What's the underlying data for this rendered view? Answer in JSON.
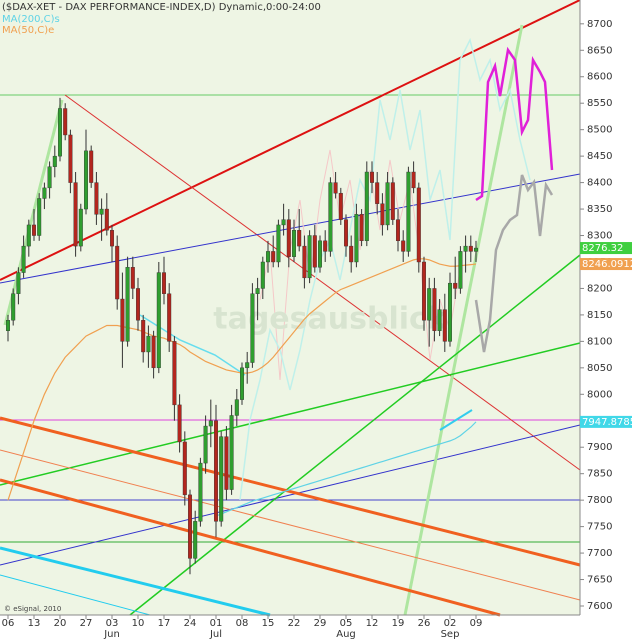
{
  "chart_data": {
    "type": "candlestick",
    "title": "($DAX-XET - DAX PERFORMANCE-INDEX,D) Dynamic,0:00-24:00",
    "watermark": "tagesausblick",
    "copyright": "© eSignal, 2010",
    "categories": [
      "06",
      null,
      null,
      null,
      null,
      "13",
      null,
      null,
      null,
      null,
      "20",
      null,
      null,
      null,
      null,
      "27",
      null,
      null,
      null,
      null,
      "03",
      null,
      null,
      null,
      null,
      "10",
      null,
      null,
      null,
      null,
      "17",
      null,
      null,
      null,
      null,
      "24",
      null,
      null,
      null,
      null,
      "01",
      null,
      null,
      null,
      null,
      "08",
      null,
      null,
      null,
      null,
      "15",
      null,
      null,
      null,
      null,
      "22",
      null,
      null,
      null,
      null,
      "29",
      null,
      null,
      null,
      null,
      "05",
      null,
      null,
      null,
      null,
      "12",
      null,
      null,
      null,
      null,
      "19",
      null,
      null,
      null,
      null,
      "26",
      null,
      null,
      null,
      null,
      "02",
      null,
      null,
      null,
      null,
      "09"
    ],
    "months": [
      {
        "label": "Jun",
        "category": "03"
      },
      {
        "label": "Jul",
        "category": "01"
      },
      {
        "label": "Aug",
        "category": "05"
      },
      {
        "label": "Sep",
        "category": "02"
      }
    ],
    "up_color": "#2f9e2f",
    "down_color": "#b3261e",
    "ohlc": [
      [
        8120,
        8150,
        8100,
        8140
      ],
      [
        8140,
        8200,
        8130,
        8190
      ],
      [
        8190,
        8240,
        8170,
        8230
      ],
      [
        8230,
        8300,
        8220,
        8280
      ],
      [
        8280,
        8330,
        8260,
        8320
      ],
      [
        8320,
        8350,
        8290,
        8300
      ],
      [
        8300,
        8380,
        8290,
        8370
      ],
      [
        8370,
        8400,
        8350,
        8390
      ],
      [
        8390,
        8440,
        8370,
        8430
      ],
      [
        8430,
        8470,
        8410,
        8450
      ],
      [
        8450,
        8560,
        8440,
        8540
      ],
      [
        8540,
        8550,
        8480,
        8490
      ],
      [
        8490,
        8500,
        8380,
        8400
      ],
      [
        8400,
        8420,
        8260,
        8280
      ],
      [
        8280,
        8360,
        8270,
        8350
      ],
      [
        8350,
        8500,
        8340,
        8460
      ],
      [
        8460,
        8470,
        8390,
        8400
      ],
      [
        8400,
        8420,
        8320,
        8340
      ],
      [
        8340,
        8370,
        8290,
        8350
      ],
      [
        8350,
        8380,
        8300,
        8310
      ],
      [
        8310,
        8320,
        8250,
        8280
      ],
      [
        8280,
        8300,
        8160,
        8180
      ],
      [
        8180,
        8230,
        8050,
        8100
      ],
      [
        8100,
        8260,
        8090,
        8240
      ],
      [
        8240,
        8260,
        8180,
        8200
      ],
      [
        8200,
        8220,
        8120,
        8140
      ],
      [
        8140,
        8150,
        8060,
        8080
      ],
      [
        8080,
        8130,
        8050,
        8110
      ],
      [
        8110,
        8120,
        8030,
        8050
      ],
      [
        8050,
        8250,
        8040,
        8230
      ],
      [
        8230,
        8260,
        8170,
        8190
      ],
      [
        8190,
        8210,
        8080,
        8100
      ],
      [
        8100,
        8110,
        7950,
        7980
      ],
      [
        7980,
        8000,
        7890,
        7910
      ],
      [
        7910,
        7930,
        7790,
        7810
      ],
      [
        7810,
        7820,
        7660,
        7690
      ],
      [
        7690,
        7780,
        7680,
        7760
      ],
      [
        7760,
        7880,
        7750,
        7870
      ],
      [
        7870,
        7960,
        7850,
        7940
      ],
      [
        7940,
        7990,
        7900,
        7950
      ],
      [
        7950,
        7980,
        7730,
        7760
      ],
      [
        7760,
        7930,
        7750,
        7920
      ],
      [
        7920,
        7940,
        7800,
        7820
      ],
      [
        7820,
        7980,
        7810,
        7960
      ],
      [
        7960,
        8010,
        7940,
        7990
      ],
      [
        7990,
        8060,
        7980,
        8050
      ],
      [
        8050,
        8080,
        8020,
        8060
      ],
      [
        8060,
        8210,
        8050,
        8190
      ],
      [
        8190,
        8220,
        8140,
        8200
      ],
      [
        8200,
        8260,
        8180,
        8250
      ],
      [
        8250,
        8290,
        8230,
        8270
      ],
      [
        8270,
        8300,
        8240,
        8250
      ],
      [
        8250,
        8330,
        8240,
        8320
      ],
      [
        8320,
        8360,
        8300,
        8330
      ],
      [
        8330,
        8350,
        8240,
        8260
      ],
      [
        8260,
        8330,
        8250,
        8310
      ],
      [
        8310,
        8350,
        8270,
        8280
      ],
      [
        8280,
        8300,
        8200,
        8220
      ],
      [
        8220,
        8310,
        8210,
        8300
      ],
      [
        8300,
        8320,
        8230,
        8240
      ],
      [
        8240,
        8300,
        8230,
        8290
      ],
      [
        8290,
        8310,
        8250,
        8270
      ],
      [
        8270,
        8410,
        8260,
        8400
      ],
      [
        8400,
        8420,
        8370,
        8380
      ],
      [
        8380,
        8390,
        8320,
        8330
      ],
      [
        8330,
        8340,
        8260,
        8280
      ],
      [
        8280,
        8300,
        8230,
        8250
      ],
      [
        8250,
        8360,
        8240,
        8340
      ],
      [
        8340,
        8350,
        8280,
        8290
      ],
      [
        8290,
        8440,
        8280,
        8420
      ],
      [
        8420,
        8440,
        8380,
        8400
      ],
      [
        8400,
        8420,
        8340,
        8360
      ],
      [
        8360,
        8380,
        8300,
        8320
      ],
      [
        8320,
        8420,
        8310,
        8400
      ],
      [
        8400,
        8410,
        8320,
        8330
      ],
      [
        8330,
        8350,
        8270,
        8290
      ],
      [
        8290,
        8310,
        8250,
        8270
      ],
      [
        8270,
        8430,
        8260,
        8420
      ],
      [
        8420,
        8440,
        8380,
        8390
      ],
      [
        8390,
        8400,
        8230,
        8250
      ],
      [
        8250,
        8260,
        8120,
        8140
      ],
      [
        8140,
        8220,
        8090,
        8200
      ],
      [
        8200,
        8220,
        8100,
        8120
      ],
      [
        8120,
        8180,
        8110,
        8160
      ],
      [
        8160,
        8190,
        8080,
        8100
      ],
      [
        8100,
        8230,
        8090,
        8210
      ],
      [
        8210,
        8260,
        8180,
        8200
      ],
      [
        8200,
        8280,
        8190,
        8270
      ],
      [
        8270,
        8300,
        8230,
        8280
      ],
      [
        8280,
        8300,
        8250,
        8270
      ],
      [
        8270,
        8290,
        8250,
        8276.32
      ]
    ],
    "series": [
      {
        "name": "MA(200,C)s",
        "color": "#5fd3e6",
        "values": [
          null,
          null,
          null,
          null,
          null,
          null,
          null,
          null,
          null,
          null,
          null,
          null,
          null,
          null,
          null,
          null,
          null,
          null,
          null,
          null,
          null,
          null,
          null,
          null,
          null,
          null,
          null,
          null,
          null,
          null,
          null,
          null,
          null,
          null,
          null,
          null,
          null,
          null,
          null,
          null,
          7770,
          7774,
          7778,
          7782,
          7786,
          7790,
          7794,
          7798,
          7801,
          7804,
          7807,
          7810,
          7813,
          7816,
          7819,
          7822,
          7825,
          7828,
          7831,
          7834,
          7837,
          7840,
          7843,
          7846,
          7849,
          7852,
          7855,
          7858,
          7861,
          7864,
          7867,
          7870,
          7873,
          7876,
          7879,
          7882,
          7885,
          7888,
          7891,
          7894,
          7897,
          7900,
          7903,
          7906,
          7909,
          7912,
          7916,
          7922,
          7930,
          7938,
          7947.87857
        ]
      },
      {
        "name": "MA(50,C)e",
        "color": "#f0a050",
        "values": [
          7800,
          7830,
          7860,
          7890,
          7920,
          7950,
          7975,
          8000,
          8020,
          8040,
          8055,
          8070,
          8080,
          8090,
          8100,
          8110,
          8115,
          8120,
          8125,
          8130,
          8130,
          8130,
          8128,
          8126,
          8124,
          8122,
          8118,
          8114,
          8110,
          8108,
          8106,
          8102,
          8098,
          8094,
          8088,
          8080,
          8074,
          8068,
          8062,
          8058,
          8054,
          8050,
          8046,
          8044,
          8042,
          8040,
          8040,
          8042,
          8046,
          8052,
          8060,
          8070,
          8082,
          8094,
          8106,
          8118,
          8130,
          8142,
          8152,
          8160,
          8168,
          8176,
          8184,
          8192,
          8198,
          8202,
          8206,
          8210,
          8214,
          8218,
          8222,
          8226,
          8230,
          8234,
          8238,
          8242,
          8246,
          8250,
          8254,
          8256,
          8256,
          8254,
          8250,
          8246,
          8244,
          8242,
          8242,
          8243,
          8244,
          8245,
          8246.09124
        ]
      }
    ],
    "last_labels": [
      {
        "value": 8276.32,
        "label": "8276.32",
        "color": "#3fcf3f"
      },
      {
        "value": 8246.09124,
        "label": "8246.09124",
        "color": "#f0a050"
      },
      {
        "value": 7947.87857,
        "label": "7947.87857",
        "color": "#40d8e8"
      }
    ],
    "ylim": [
      7583,
      8745
    ],
    "yticks": [
      7600,
      7650,
      7700,
      7750,
      7800,
      7850,
      7900,
      7950,
      8000,
      8050,
      8100,
      8150,
      8200,
      8250,
      8300,
      8350,
      8400,
      8450,
      8500,
      8550,
      8600,
      8650,
      8700
    ]
  }
}
